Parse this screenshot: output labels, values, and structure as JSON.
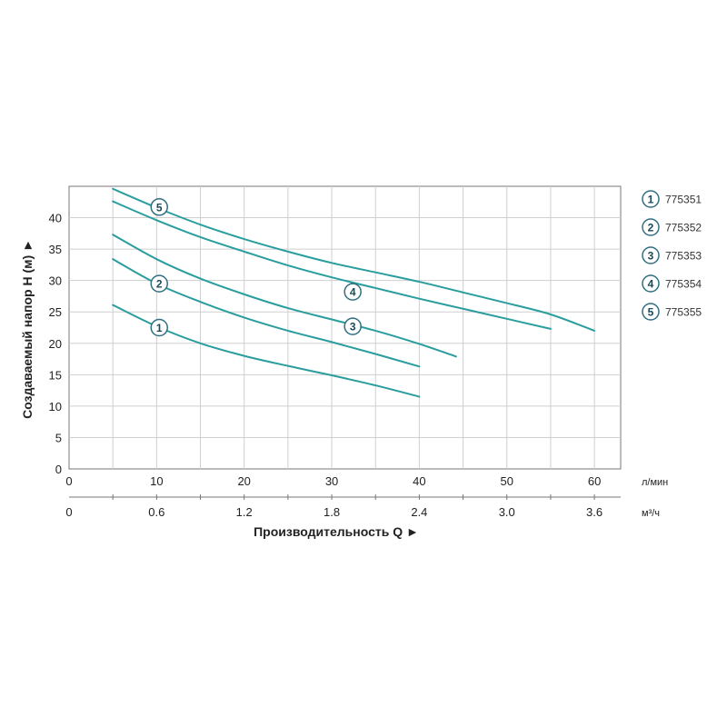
{
  "chart_data": {
    "type": "line",
    "color": "#2a9d9e",
    "badge_stroke": "#2f6f80",
    "grid": true,
    "legend_position": "right",
    "xlabel": "Производительность Q ►",
    "ylabel": "Создаваемый напор H (м) ►",
    "x_unit": "л/мин",
    "x2_unit": "м³/ч",
    "xlim": [
      0,
      63
    ],
    "ylim": [
      0,
      45
    ],
    "x_ticks": [
      "0",
      "10",
      "20",
      "30",
      "40",
      "50",
      "60"
    ],
    "x2_ticks": [
      "0",
      "0.6",
      "1.2",
      "1.8",
      "2.4",
      "3.0",
      "3.6"
    ],
    "y_ticks": [
      "0",
      "5",
      "10",
      "15",
      "20",
      "25",
      "30",
      "35",
      "40"
    ],
    "series": [
      {
        "name": "775351",
        "number": "1",
        "x": [
          5,
          10,
          15,
          20,
          25,
          30,
          35,
          40
        ],
        "y": [
          26.1,
          22.7,
          20.0,
          18.0,
          16.4,
          14.9,
          13.3,
          11.5
        ],
        "badge_x": 10.3,
        "badge_y": 22.5
      },
      {
        "name": "775352",
        "number": "2",
        "x": [
          5,
          10,
          15,
          20,
          25,
          30,
          35,
          40
        ],
        "y": [
          33.4,
          29.5,
          26.6,
          24.1,
          22.0,
          20.2,
          18.3,
          16.3
        ],
        "badge_x": 10.3,
        "badge_y": 29.5
      },
      {
        "name": "775353",
        "number": "3",
        "x": [
          5,
          10,
          15,
          20,
          25,
          30,
          35,
          40,
          44.2
        ],
        "y": [
          37.3,
          33.4,
          30.3,
          27.8,
          25.6,
          23.8,
          22.0,
          19.9,
          17.9
        ],
        "badge_x": 32.4,
        "badge_y": 22.7
      },
      {
        "name": "775354",
        "number": "4",
        "x": [
          5,
          10,
          15,
          20,
          25,
          30,
          35,
          40,
          45,
          50,
          55
        ],
        "y": [
          42.6,
          39.6,
          36.9,
          34.6,
          32.4,
          30.5,
          28.8,
          27.1,
          25.5,
          23.9,
          22.3
        ],
        "badge_x": 32.4,
        "badge_y": 28.2
      },
      {
        "name": "775355",
        "number": "5",
        "x": [
          5,
          10,
          15,
          20,
          25,
          30,
          35,
          40,
          45,
          50,
          55,
          60
        ],
        "y": [
          44.6,
          41.6,
          38.9,
          36.6,
          34.6,
          32.8,
          31.3,
          29.8,
          28.1,
          26.4,
          24.6,
          22.0
        ],
        "badge_x": 10.3,
        "badge_y": 41.7
      }
    ]
  }
}
